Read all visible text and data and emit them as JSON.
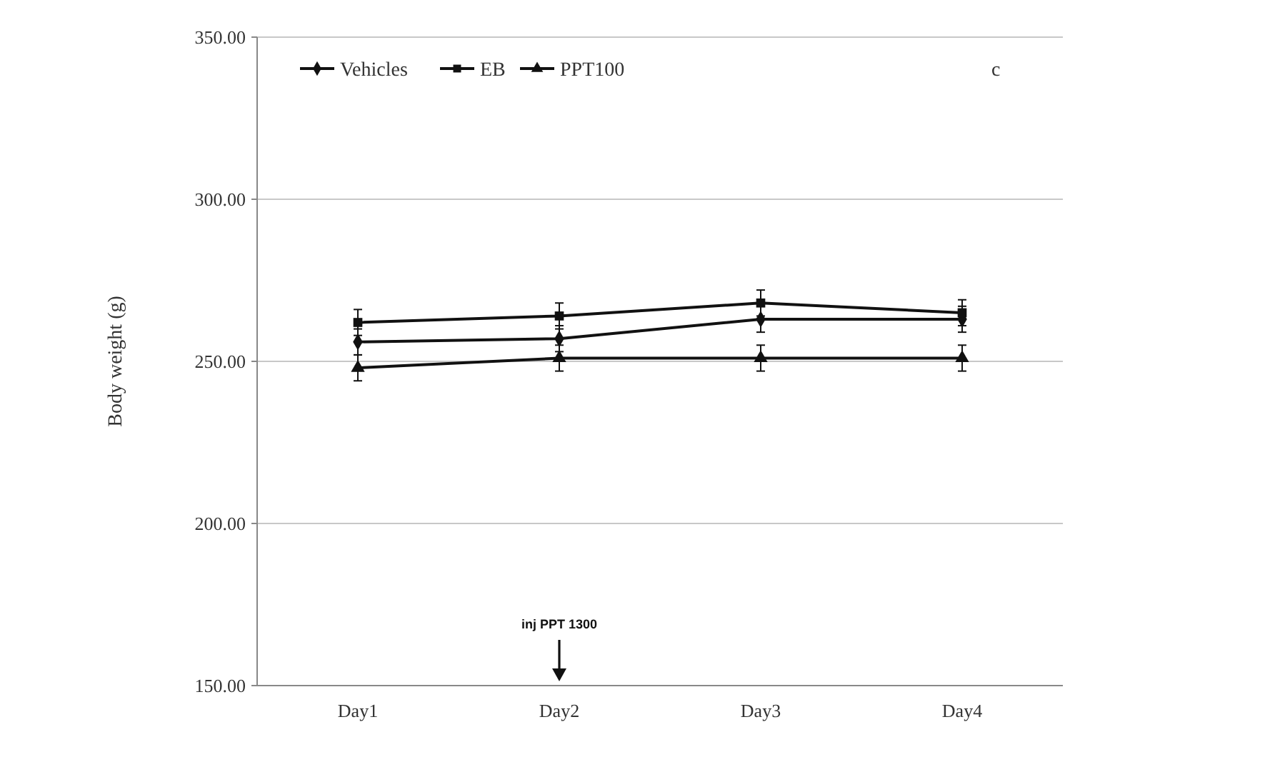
{
  "chart_data": {
    "type": "line",
    "ylabel": "Body weight (g)",
    "categories": [
      "Day1",
      "Day2",
      "Day3",
      "Day4"
    ],
    "series": [
      {
        "name": "Vehicles",
        "color": "#111111",
        "marker": "diamond",
        "values": [
          256,
          257,
          263,
          263
        ],
        "errors": [
          4,
          4,
          4,
          4
        ]
      },
      {
        "name": "EB",
        "color": "#111111",
        "marker": "square",
        "values": [
          262,
          264,
          268,
          265
        ],
        "errors": [
          4,
          4,
          4,
          4
        ]
      },
      {
        "name": "PPT100",
        "color": "#111111",
        "marker": "triangle",
        "values": [
          248,
          251,
          251,
          251
        ],
        "errors": [
          4,
          4,
          4,
          4
        ]
      }
    ],
    "ylim": [
      150,
      350
    ],
    "yticks": [
      {
        "value": 150,
        "label": "150.00"
      },
      {
        "value": 200,
        "label": "200.00"
      },
      {
        "value": 250,
        "label": "250.00"
      },
      {
        "value": 300,
        "label": "300.00"
      },
      {
        "value": 350,
        "label": "350.00"
      }
    ],
    "grid": "y",
    "legend": "top left",
    "line_style": "solid",
    "annotations": [
      "c",
      "inj PPT 1300"
    ]
  }
}
